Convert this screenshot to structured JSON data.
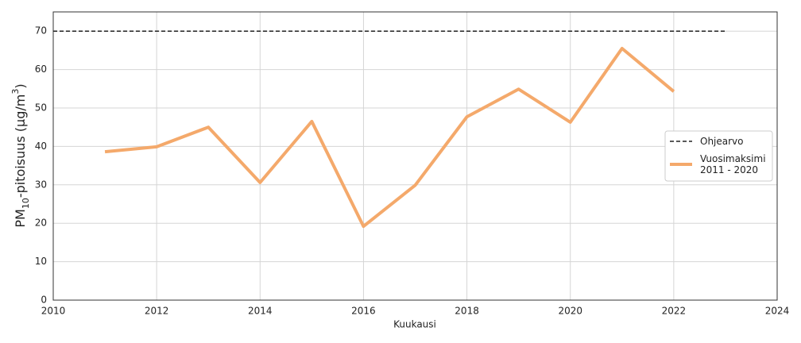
{
  "chart_data": {
    "type": "line",
    "xlabel": "Kuukausi",
    "ylabel": [
      "PM",
      "10",
      "-pitoisuus (µg/m",
      "3",
      ")"
    ],
    "xlim": [
      2010,
      2024
    ],
    "xticks": [
      2010,
      2012,
      2014,
      2016,
      2018,
      2020,
      2022,
      2024
    ],
    "ylim": [
      0,
      75
    ],
    "yticks": [
      0,
      10,
      20,
      30,
      40,
      50,
      60,
      70
    ],
    "grid": true,
    "legend": "right",
    "series": [
      {
        "name": "Ohjearvo",
        "color": "#222222",
        "dash": true,
        "x": [
          2010,
          2023
        ],
        "values": [
          70,
          70
        ]
      },
      {
        "name": "Vuosimaksimi\n2011 - 2020",
        "color": "#f4a96b",
        "dash": false,
        "x": [
          2011,
          2012,
          2013,
          2014,
          2015,
          2016,
          2017,
          2018,
          2019,
          2020,
          2021,
          2022
        ],
        "values": [
          38.6,
          39.9,
          45.0,
          30.6,
          46.5,
          19.2,
          29.9,
          47.7,
          54.9,
          46.3,
          65.5,
          54.3
        ]
      }
    ]
  }
}
